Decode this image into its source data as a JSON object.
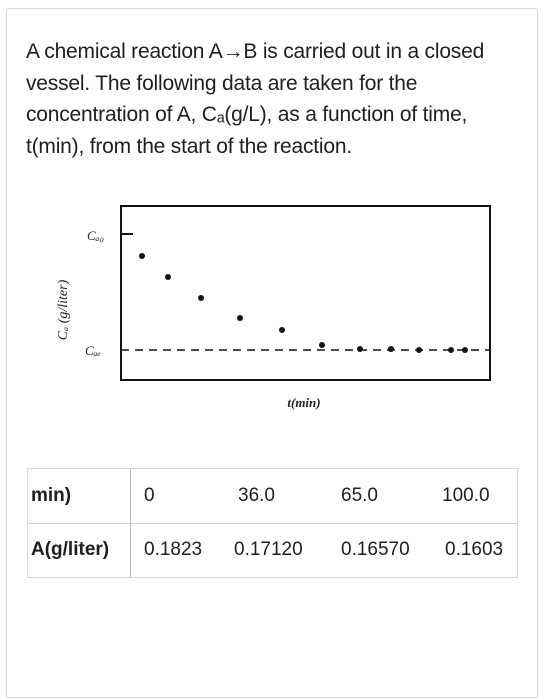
{
  "question": {
    "lines": [
      "A chemical reaction A→B is carried out in a closed",
      "vessel. The following data are taken for the",
      "concentration of A, Cₐ(g/L), as a function of time,",
      "t(min), from the start of the reaction."
    ]
  },
  "figure": {
    "y_axis_label": "Cₐ (g/liter)",
    "label_ca0": "Cₐ₀",
    "label_cae": "Cₐₑ",
    "x_axis_label": "t(min)"
  },
  "table": {
    "time_header": "min)",
    "times": [
      "0",
      "36.0",
      "65.0",
      "100.0"
    ],
    "conc_header": "A(g/liter)",
    "concentrations": [
      "0.1823",
      "0.17120",
      "0.16570",
      "0.1603"
    ]
  }
}
